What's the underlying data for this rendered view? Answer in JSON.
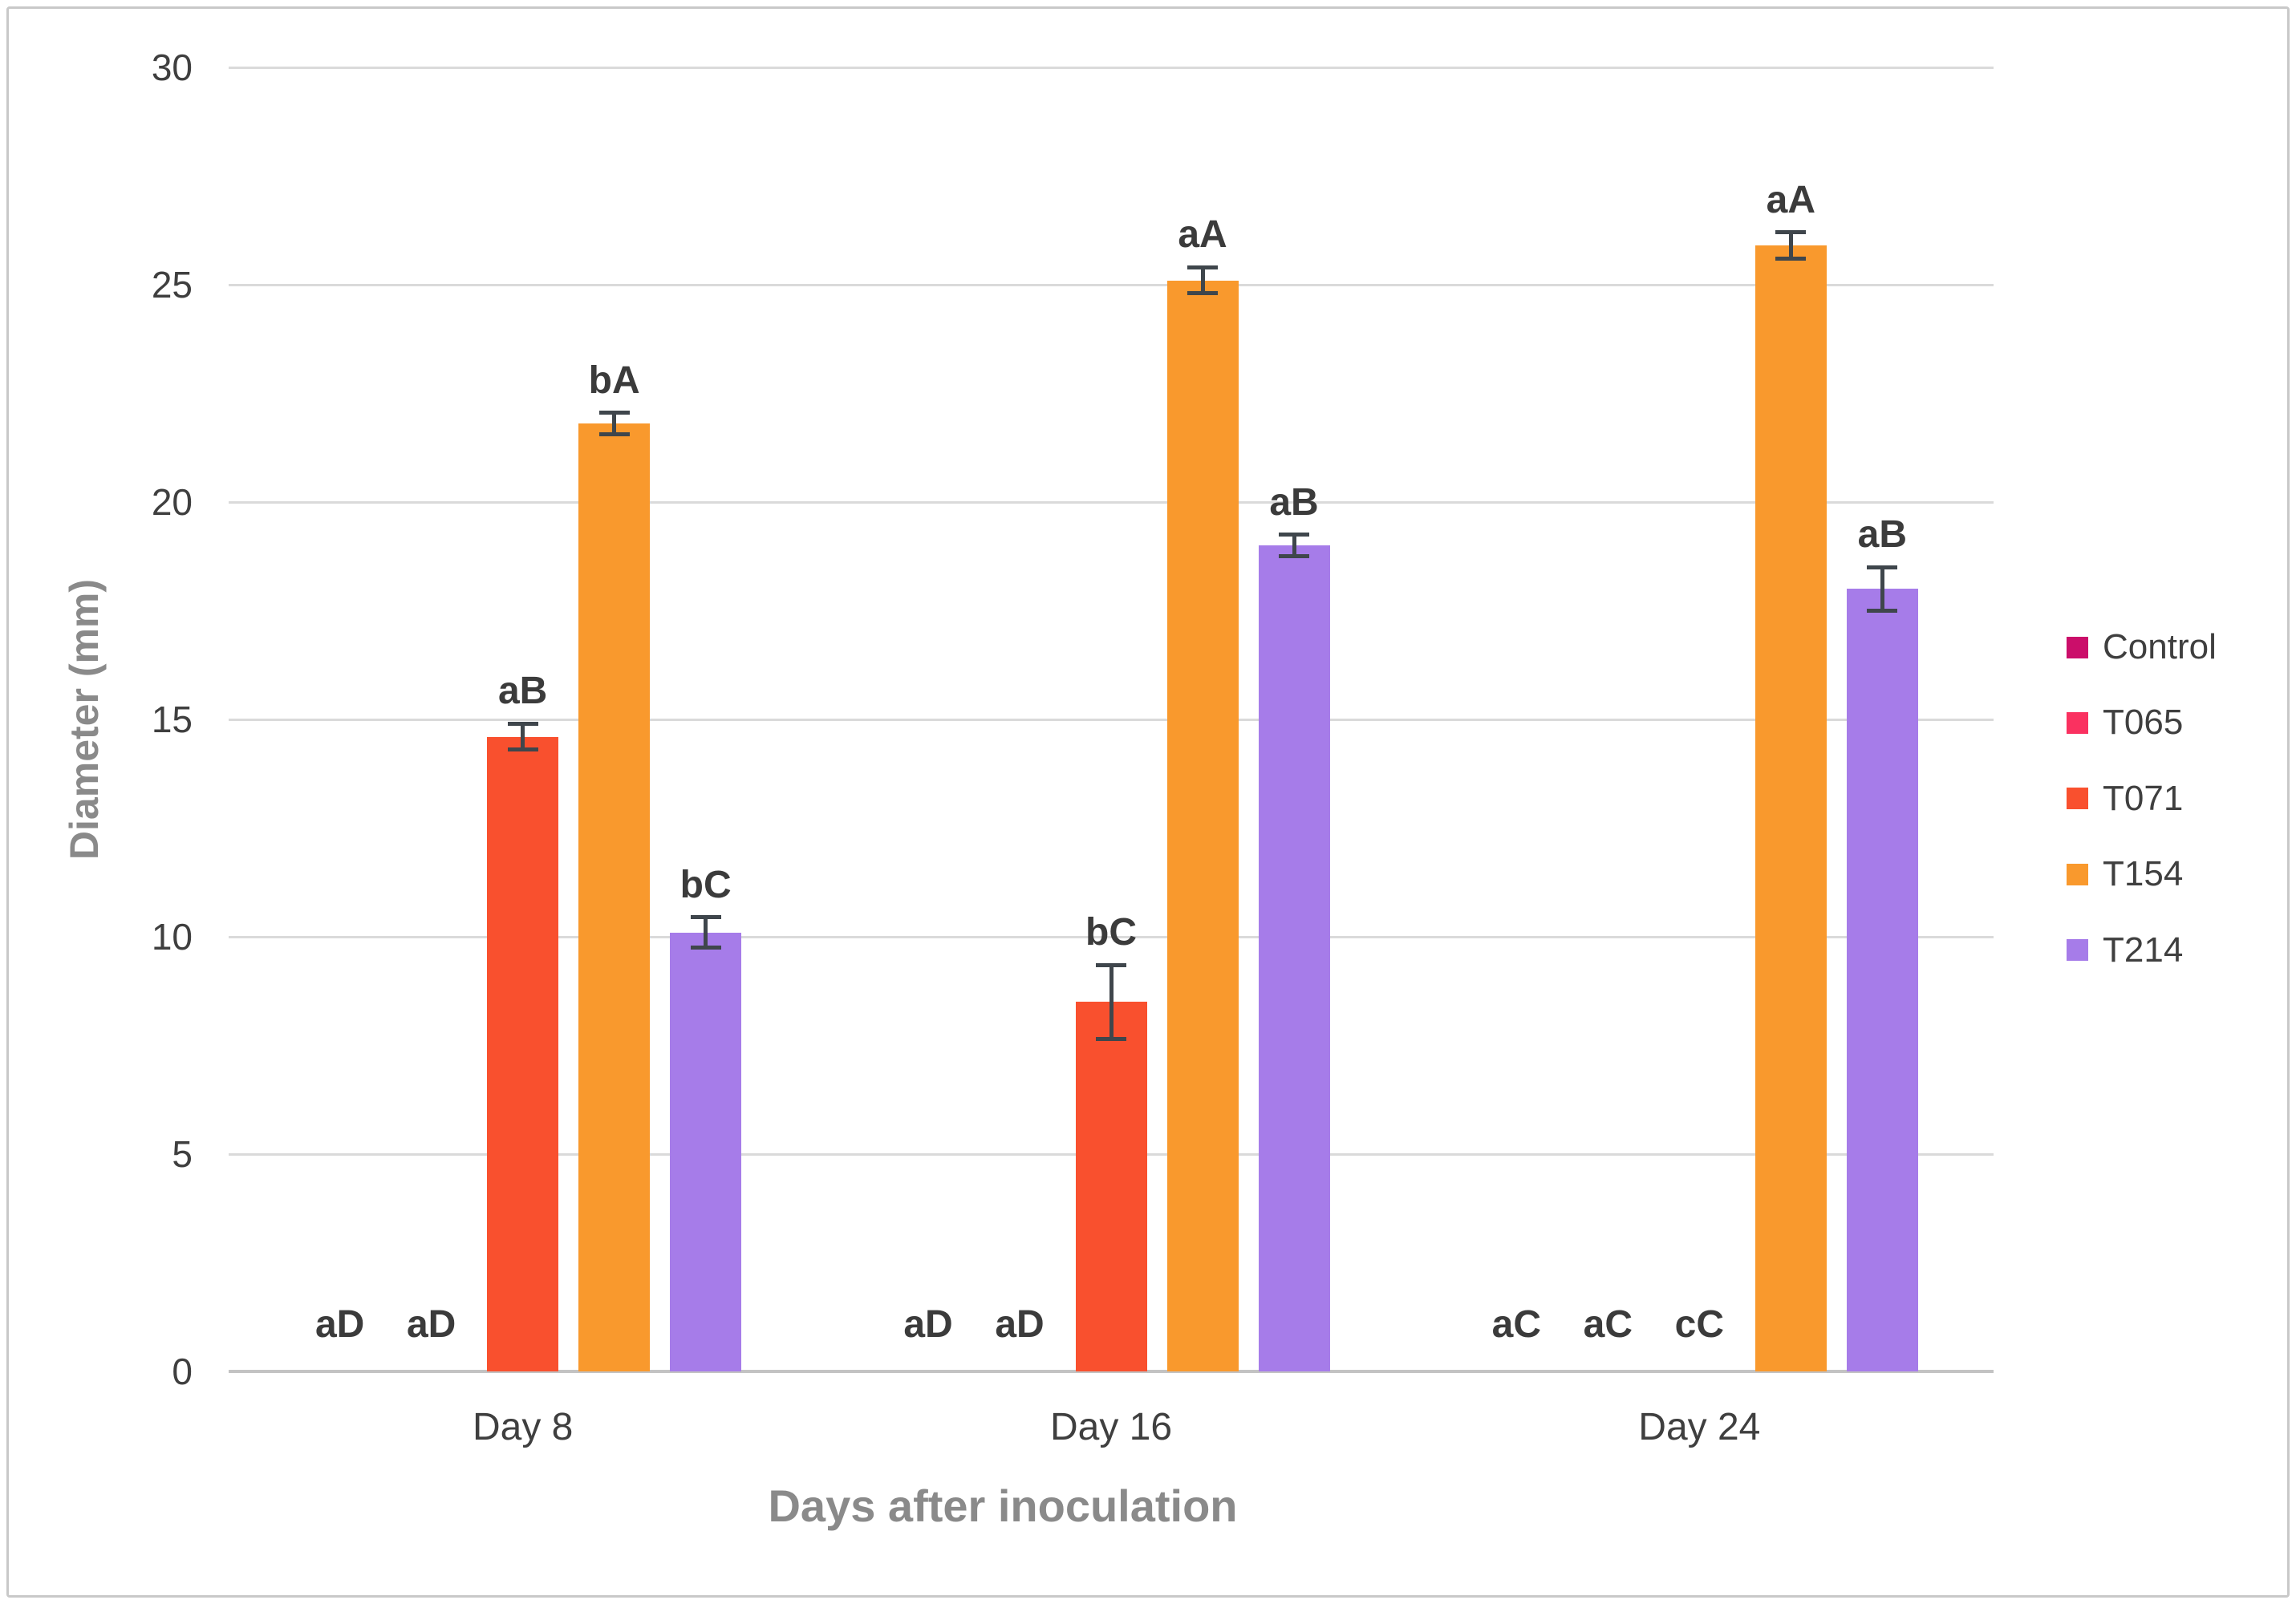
{
  "chart_data": {
    "type": "bar",
    "title": "",
    "xlabel": "Days after inoculation",
    "ylabel": "Diameter (mm)",
    "categories": [
      "Day 8",
      "Day 16",
      "Day 24"
    ],
    "y_ticks": [
      0,
      5,
      10,
      15,
      20,
      25,
      30
    ],
    "ylim": [
      0,
      30
    ],
    "grid": "horizontal-only",
    "legend_position": "right-middle",
    "series": [
      {
        "name": "Control",
        "color": "#cb0e6a",
        "values": [
          0,
          0,
          0
        ],
        "errors": [
          0,
          0,
          0
        ],
        "point_labels": [
          "aD",
          "aD",
          "aC"
        ]
      },
      {
        "name": "T065",
        "color": "#fa3160",
        "values": [
          0,
          0,
          0
        ],
        "errors": [
          0,
          0,
          0
        ],
        "point_labels": [
          "aD",
          "aD",
          "aC"
        ]
      },
      {
        "name": "T071",
        "color": "#f9502e",
        "values": [
          14.6,
          8.5,
          0
        ],
        "errors": [
          0.3,
          0.85,
          0
        ],
        "point_labels": [
          "aB",
          "bC",
          "cC"
        ]
      },
      {
        "name": "T154",
        "color": "#f9992d",
        "values": [
          21.8,
          25.1,
          25.9
        ],
        "errors": [
          0.25,
          0.3,
          0.3
        ],
        "point_labels": [
          "bA",
          "aA",
          "aA"
        ]
      },
      {
        "name": "T214",
        "color": "#a67ce9",
        "values": [
          10.1,
          19.0,
          18.0
        ],
        "errors": [
          0.35,
          0.25,
          0.5
        ],
        "point_labels": [
          "bC",
          "aB",
          "aB"
        ]
      }
    ]
  },
  "style": {
    "gridline_color": "#dadada",
    "axisline_color": "#c3c3c3",
    "errorbar_color": "#3f464c",
    "tick_text_color": "#3f3f3f",
    "data_label_color": "#3b3b3b",
    "axis_title_color": "#8a8a8a",
    "legend_text_color": "#3f3f3f",
    "frame_border_color": "#c9c9c9",
    "background_color": "#ffffff"
  }
}
